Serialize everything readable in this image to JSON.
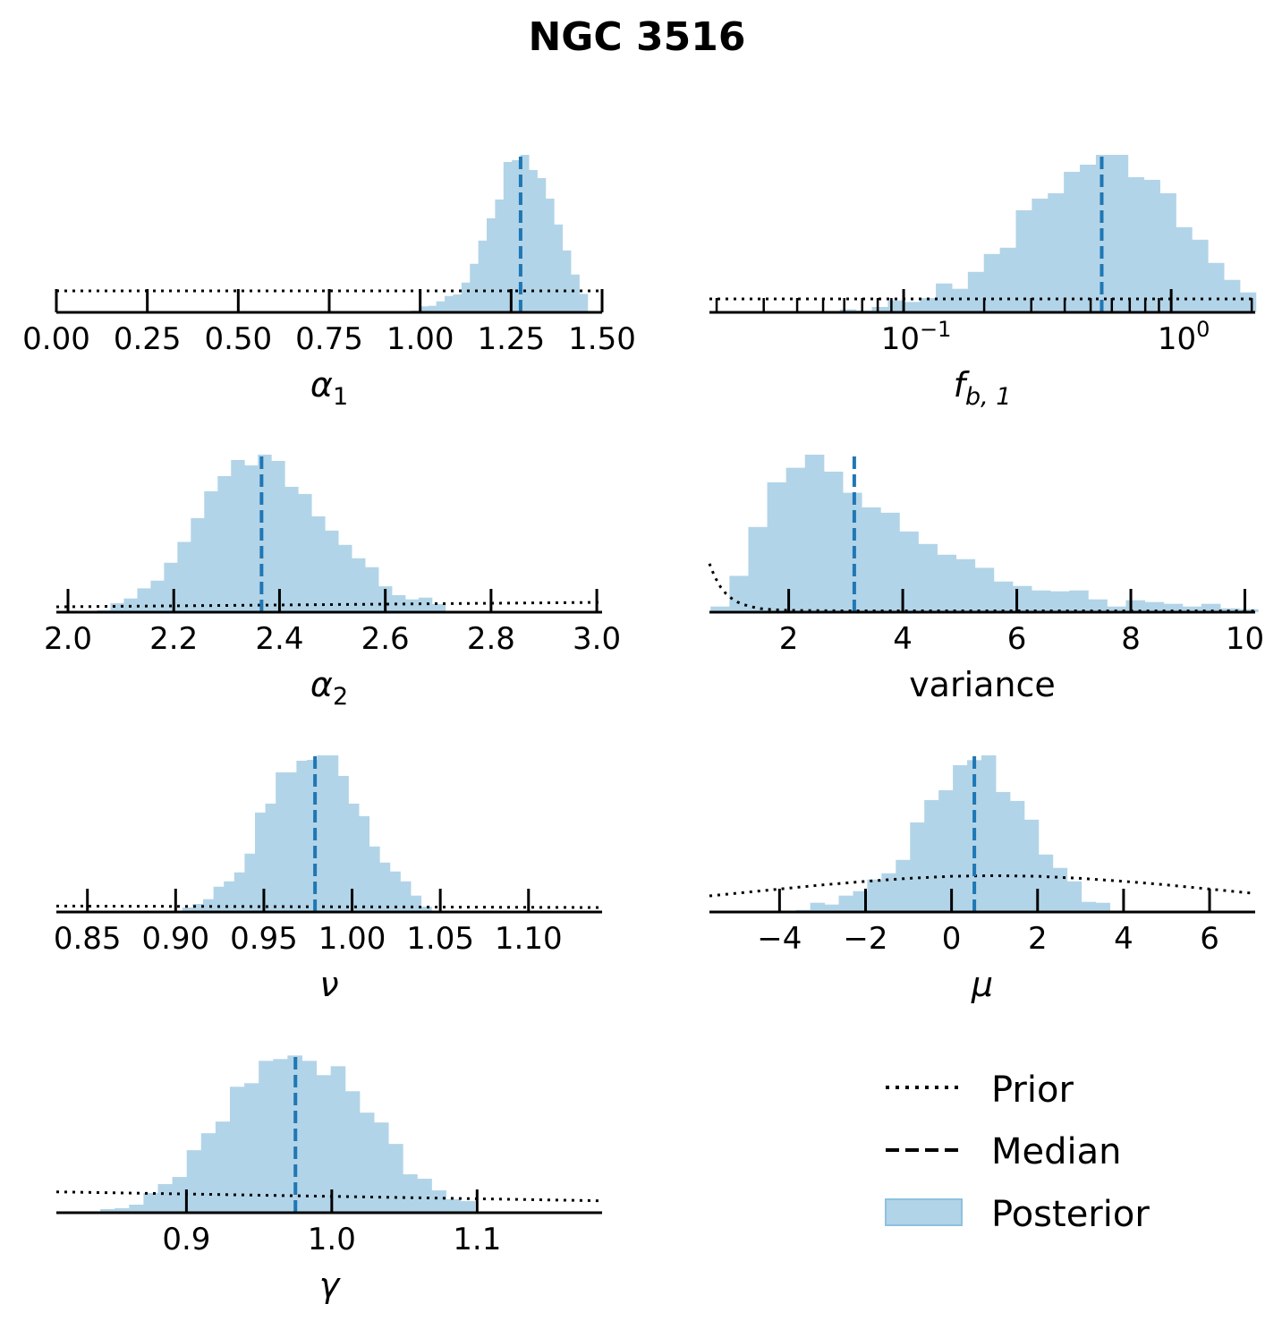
{
  "colors": {
    "posterior_fill": "#b2d4e8",
    "posterior_edge": "#8cc1e0",
    "median": "#1f77b4",
    "prior": "#000000"
  },
  "chart_data": {
    "type": "histogram-grid",
    "title": "NGC 3516",
    "legend": {
      "placement": "bottom-right",
      "entries": [
        {
          "label": "Prior",
          "style": "dotted"
        },
        {
          "label": "Median",
          "style": "dashed"
        },
        {
          "label": "Posterior",
          "style": "patch"
        }
      ]
    },
    "panels": [
      {
        "xlabel": {
          "main": "α",
          "sub": "1"
        },
        "scale": "linear",
        "xlim": [
          0,
          1.5
        ],
        "ticks": [
          {
            "value": 0,
            "label": "0.00"
          },
          {
            "value": 0.25,
            "label": "0.25"
          },
          {
            "value": 0.5,
            "label": "0.50"
          },
          {
            "value": 0.75,
            "label": "0.75"
          },
          {
            "value": 1.0,
            "label": "1.00"
          },
          {
            "value": 1.25,
            "label": "1.25"
          },
          {
            "value": 1.5,
            "label": "1.50"
          }
        ],
        "bins": {
          "start": 0.9287,
          "width": 0.0231,
          "values": [
            3,
            0,
            6,
            20,
            22,
            37,
            55,
            60,
            100,
            163,
            241,
            316,
            379,
            505,
            511,
            529,
            478,
            451,
            382,
            295,
            208,
            127,
            62
          ]
        },
        "median": 1.276,
        "prior": [
          [
            0,
            72
          ],
          [
            1.5,
            72
          ]
        ]
      },
      {
        "xlabel": {
          "main": "f",
          "sub": "b, 1"
        },
        "scale": "log",
        "xlim": [
          0.0188,
          2.06
        ],
        "ticks": [
          {
            "value": 0.1,
            "base": "10",
            "exp": "−1"
          },
          {
            "value": 1,
            "base": "10",
            "exp": "0"
          }
        ],
        "bins": {
          "log10_start": -1.358,
          "log10_width": 0.0598,
          "values": [
            2,
            2,
            10,
            6,
            18,
            40,
            35,
            48,
            97,
            79,
            136,
            196,
            217,
            343,
            382,
            400,
            472,
            496,
            529,
            529,
            454,
            445,
            400,
            286,
            244,
            166,
            109,
            67
          ]
        },
        "median": 0.55,
        "prior": [
          [
            0.0188,
            45
          ],
          [
            2.06,
            45
          ]
        ]
      },
      {
        "xlabel": {
          "main": "α",
          "sub": "2"
        },
        "scale": "linear",
        "xlim": [
          1.978,
          3.01
        ],
        "ticks": [
          {
            "value": 2.0,
            "label": "2.0"
          },
          {
            "value": 2.2,
            "label": "2.2"
          },
          {
            "value": 2.4,
            "label": "2.4"
          },
          {
            "value": 2.6,
            "label": "2.6"
          },
          {
            "value": 2.8,
            "label": "2.8"
          },
          {
            "value": 3.0,
            "label": "3.0"
          }
        ],
        "bins": {
          "start": 2.055,
          "width": 0.02533,
          "values": [
            7,
            30,
            46,
            80,
            106,
            166,
            236,
            316,
            406,
            457,
            511,
            493,
            529,
            508,
            421,
            397,
            322,
            274,
            226,
            181,
            151,
            87,
            57,
            43,
            49,
            27
          ]
        },
        "median": 2.366,
        "prior": [
          [
            1.978,
            18
          ],
          [
            3.01,
            33
          ]
        ]
      },
      {
        "xlabel": {
          "main": "variance",
          "sub": ""
        },
        "scale": "linear",
        "xlim": [
          0.61,
          10.18
        ],
        "ticks": [
          {
            "value": 2,
            "label": "2"
          },
          {
            "value": 4,
            "label": "4"
          },
          {
            "value": 6,
            "label": "6"
          },
          {
            "value": 8,
            "label": "8"
          },
          {
            "value": 10,
            "label": "10"
          }
        ],
        "bins": {
          "start": 0.63,
          "width": 0.331,
          "values": [
            19,
            122,
            286,
            436,
            485,
            529,
            472,
            401,
            352,
            334,
            271,
            229,
            193,
            178,
            149,
            103,
            88,
            73,
            70,
            73,
            43,
            19,
            40,
            34,
            28,
            19,
            28,
            13,
            10
          ]
        },
        "median": 3.15,
        "prior": [
          [
            0.61,
            163
          ],
          [
            0.7,
            120
          ],
          [
            0.8,
            86
          ],
          [
            0.9,
            62
          ],
          [
            1.0,
            46
          ],
          [
            1.1,
            34
          ],
          [
            1.2,
            26
          ],
          [
            1.35,
            18
          ],
          [
            1.5,
            12
          ],
          [
            1.75,
            8
          ],
          [
            2,
            6
          ],
          [
            3,
            4.5
          ],
          [
            10.18,
            4.2
          ]
        ]
      },
      {
        "xlabel": {
          "main": "ν",
          "sub": ""
        },
        "scale": "linear",
        "xlim": [
          0.8324,
          1.1417
        ],
        "ticks": [
          {
            "value": 0.85,
            "label": "0.85"
          },
          {
            "value": 0.9,
            "label": "0.90"
          },
          {
            "value": 0.95,
            "label": "0.95"
          },
          {
            "value": 1.0,
            "label": "1.00"
          },
          {
            "value": 1.05,
            "label": "1.05"
          },
          {
            "value": 1.1,
            "label": "1.10"
          }
        ],
        "bins": {
          "start": 0.9038,
          "width": 0.00588,
          "values": [
            15,
            27,
            43,
            85,
            103,
            133,
            196,
            334,
            364,
            469,
            469,
            508,
            511,
            526,
            526,
            457,
            364,
            322,
            220,
            166,
            136,
            103,
            55,
            18
          ]
        },
        "median": 0.979,
        "prior": [
          [
            0.8324,
            20
          ],
          [
            1.1417,
            15
          ]
        ]
      },
      {
        "xlabel": {
          "main": "μ",
          "sub": ""
        },
        "scale": "linear",
        "xlim": [
          -5.63,
          7.06
        ],
        "ticks": [
          {
            "value": -4,
            "label": "−4"
          },
          {
            "value": -2,
            "label": "−2"
          },
          {
            "value": 0,
            "label": "0"
          },
          {
            "value": 2,
            "label": "2"
          },
          {
            "value": 4,
            "label": "4"
          },
          {
            "value": 6,
            "label": "6"
          }
        ],
        "bins": {
          "start": -3.95,
          "width": 0.3317,
          "values": [
            3,
            7,
            31,
            25,
            55,
            70,
            109,
            130,
            175,
            301,
            376,
            409,
            493,
            510,
            526,
            403,
            373,
            310,
            193,
            148,
            103,
            34,
            31
          ]
        },
        "median": 0.53,
        "prior": [
          [
            -5.63,
            54
          ],
          [
            -5,
            63
          ],
          [
            -4,
            77
          ],
          [
            -3,
            91
          ],
          [
            -2,
            103
          ],
          [
            -1,
            113
          ],
          [
            0,
            120
          ],
          [
            1,
            122
          ],
          [
            2,
            120
          ],
          [
            3,
            113
          ],
          [
            4,
            103
          ],
          [
            5,
            91
          ],
          [
            6,
            77
          ],
          [
            7.06,
            62
          ]
        ]
      },
      {
        "xlabel": {
          "main": "γ",
          "sub": ""
        },
        "scale": "linear",
        "xlim": [
          0.8105,
          1.186
        ],
        "ticks": [
          {
            "value": 0.9,
            "label": "0.9"
          },
          {
            "value": 1.0,
            "label": "1.0"
          },
          {
            "value": 1.1,
            "label": "1.1"
          }
        ],
        "bins": {
          "start": 0.8209,
          "width": 0.00991,
          "values": [
            2,
            2,
            12,
            15,
            27,
            66,
            96,
            120,
            210,
            267,
            306,
            423,
            435,
            510,
            516,
            528,
            510,
            462,
            492,
            408,
            336,
            303,
            231,
            129,
            114,
            75,
            45,
            39
          ]
        },
        "median": 0.975,
        "prior": [
          [
            0.8105,
            70
          ],
          [
            1.186,
            40
          ]
        ]
      }
    ]
  }
}
